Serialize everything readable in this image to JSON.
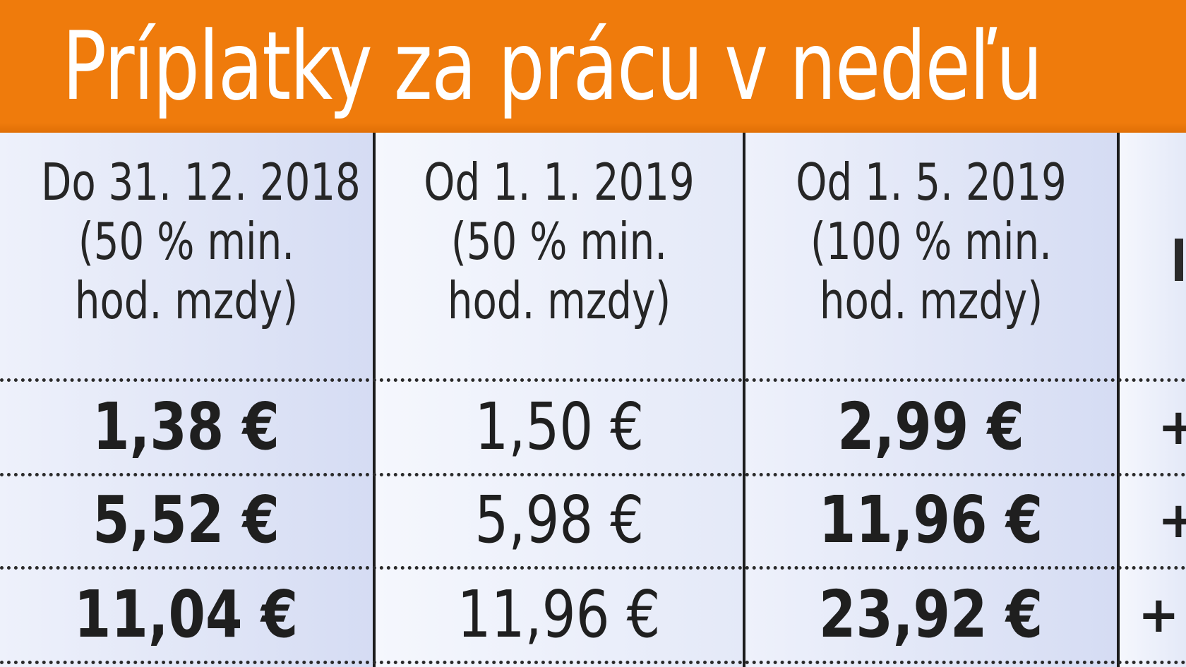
{
  "chart_data": {
    "type": "table",
    "title": "Príplatky za prácu v nedeľu",
    "columns": [
      {
        "header": [
          "Do 31. 12. 2018",
          "(50 % min.",
          "hod. mzdy)"
        ],
        "values": [
          "1,38 €",
          "5,52 €",
          "11,04 €"
        ]
      },
      {
        "header": [
          "Od 1. 1. 2019",
          "(50 % min.",
          "hod. mzdy)"
        ],
        "values": [
          "1,50 €",
          "5,98 €",
          "11,96 €"
        ]
      },
      {
        "header": [
          "Od 1. 5. 2019",
          "(100 % min.",
          "hod. mzdy)"
        ],
        "values": [
          "2,99 €",
          "11,96 €",
          "23,92 €"
        ]
      }
    ],
    "partial_column": {
      "values": [
        "+",
        "+",
        "+"
      ]
    }
  },
  "colors": {
    "title_background": "#ef7b0c",
    "title_text": "#ffffff",
    "cell_tint_dark": "#d5dcf3",
    "cell_tint_light": "#eef1fb",
    "grid": "#1c1c1c"
  }
}
